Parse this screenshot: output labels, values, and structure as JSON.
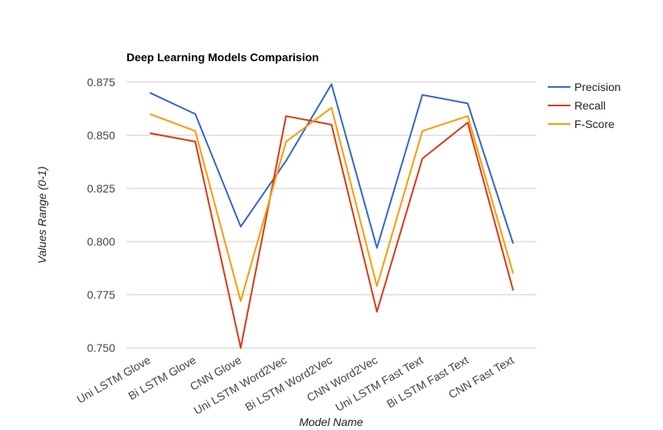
{
  "chart_data": {
    "type": "line",
    "title": "Deep Learning Models Comparision",
    "xlabel": "Model Name",
    "ylabel": "Values Range (0-1)",
    "categories": [
      "Uni LSTM Glove",
      "Bi LSTM Glove",
      "CNN Glove",
      "Uni LSTM Word2Vec",
      "Bi LSTM Word2Vec",
      "CNN Word2Vec",
      "Uni LSTM Fast Text",
      "Bi LSTM Fast Text",
      "CNN Fast Text"
    ],
    "ylim": [
      0.75,
      0.875
    ],
    "yticks": [
      "0.750",
      "0.775",
      "0.800",
      "0.825",
      "0.850",
      "0.875"
    ],
    "grid": true,
    "legend_position": "right",
    "series": [
      {
        "name": "Precision",
        "color": "#3366cc",
        "values": [
          0.87,
          0.86,
          0.807,
          0.838,
          0.874,
          0.797,
          0.869,
          0.865,
          0.799
        ]
      },
      {
        "name": "Recall",
        "color": "#dc3912",
        "values": [
          0.851,
          0.847,
          0.75,
          0.859,
          0.855,
          0.767,
          0.839,
          0.856,
          0.777
        ]
      },
      {
        "name": "F-Score",
        "color": "#ff9900",
        "values": [
          0.86,
          0.852,
          0.772,
          0.847,
          0.863,
          0.779,
          0.852,
          0.859,
          0.785
        ]
      }
    ]
  }
}
